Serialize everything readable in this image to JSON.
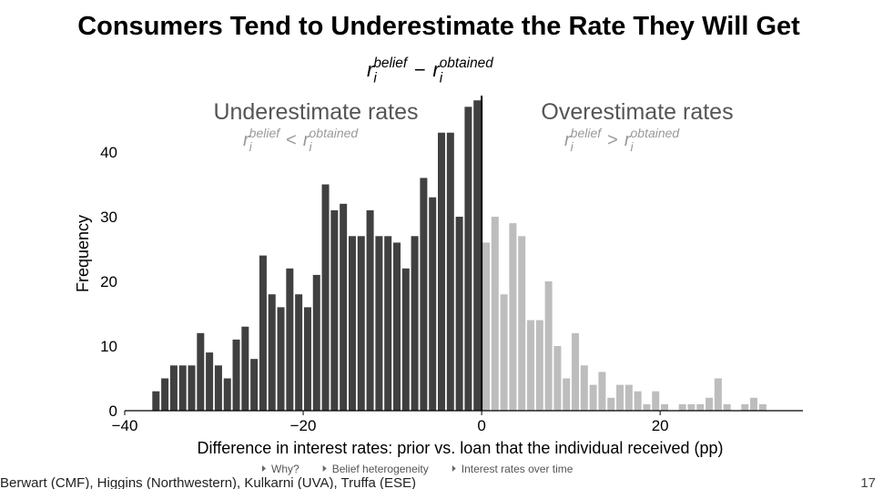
{
  "chart_data": {
    "type": "histogram",
    "title": "Consumers Tend to Underestimate the Rate They Will Get",
    "formula": {
      "var": "r",
      "sub": "i",
      "sup_left": "belief",
      "op": "−",
      "sup_right": "obtained"
    },
    "annotations": [
      {
        "text": "Underestimate rates",
        "formula": {
          "var": "r",
          "sub": "i",
          "sup_left": "belief",
          "op": "<",
          "sup_right": "obtained"
        }
      },
      {
        "text": "Overestimate rates",
        "formula": {
          "var": "r",
          "sub": "i",
          "sup_left": "belief",
          "op": ">",
          "sup_right": "obtained"
        }
      }
    ],
    "xlabel": "Difference in interest rates: prior vs. loan that the individual received (pp)",
    "ylabel": "Frequency",
    "bins": [
      -37,
      -36,
      -35,
      -34,
      -33,
      -32,
      -31,
      -30,
      -29,
      -28,
      -27,
      -26,
      -25,
      -24,
      -23,
      -22,
      -21,
      -20,
      -19,
      -18,
      -17,
      -16,
      -15,
      -14,
      -13,
      -12,
      -11,
      -10,
      -9,
      -8,
      -7,
      -6,
      -5,
      -4,
      -3,
      -2,
      -1,
      0,
      1,
      2,
      3,
      4,
      5,
      6,
      7,
      8,
      9,
      10,
      11,
      12,
      13,
      14,
      15,
      16,
      17,
      18,
      19,
      20,
      21,
      22,
      23,
      24,
      25,
      26,
      27,
      28,
      29,
      30,
      31,
      32
    ],
    "counts": [
      3,
      5,
      7,
      7,
      7,
      12,
      9,
      7,
      5,
      11,
      13,
      8,
      24,
      18,
      16,
      22,
      18,
      16,
      21,
      35,
      31,
      32,
      27,
      27,
      31,
      27,
      27,
      26,
      22,
      27,
      36,
      33,
      43,
      43,
      30,
      47,
      48,
      26,
      30,
      18,
      29,
      27,
      14,
      14,
      20,
      10,
      5,
      12,
      7,
      4,
      6,
      2,
      4,
      4,
      3,
      1,
      3,
      1,
      0,
      1,
      1,
      1,
      2,
      5,
      1,
      0,
      1,
      2,
      1
    ],
    "colors": [
      "#404040",
      "#bdbdbd"
    ],
    "divider_x": 0,
    "xlim": [
      -40,
      36
    ],
    "ylim": [
      0,
      50
    ],
    "xticks": [
      {
        "value": -40,
        "label": "−40"
      },
      {
        "value": -20,
        "label": "−20"
      },
      0,
      20
    ],
    "yticks": [
      0,
      10,
      20,
      30,
      40
    ]
  },
  "footer": {
    "authors": "Berwart (CMF), Higgins (Northwestern), Kulkarni (UVA), Truffa (ESE)",
    "links": [
      "Why?",
      "Belief heterogeneity",
      "Interest rates over time"
    ],
    "page": "17"
  }
}
